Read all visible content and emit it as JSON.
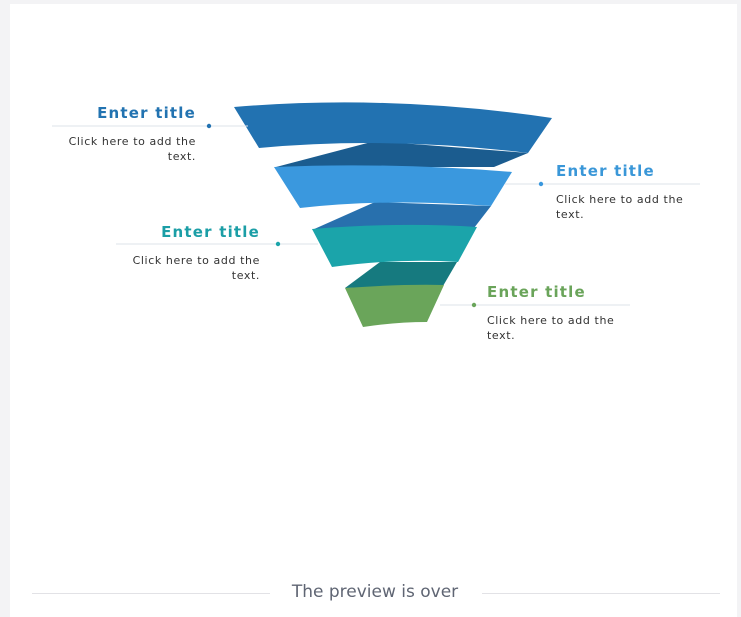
{
  "colors": {
    "tier1": "#2272b1",
    "tier2": "#3a98de",
    "tier3": "#1ba4aa",
    "tier4": "#6aa55a",
    "fold1": "#1b5c8f",
    "fold2": "#2870ad",
    "fold3": "#167a7f",
    "title_dark_blue": "#2273b1",
    "title_light_blue": "#3a97d8",
    "title_teal": "#1b9ea6",
    "title_green": "#6aa45a"
  },
  "labels": [
    {
      "title": "Enter title",
      "text": "Click here to add the text."
    },
    {
      "title": "Enter title",
      "text": "Click here to add the text."
    },
    {
      "title": "Enter title",
      "text": "Click here to add the text."
    },
    {
      "title": "Enter title",
      "text": "Click here to add the text."
    }
  ],
  "footer": {
    "text": "The preview is over"
  }
}
